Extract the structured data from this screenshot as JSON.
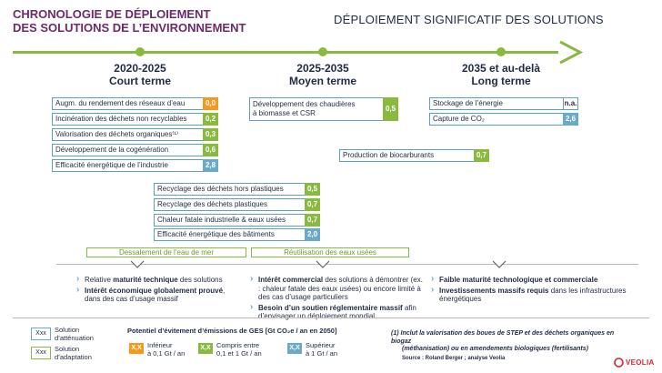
{
  "header": {
    "title_line1": "CHRONOLOGIE DE DÉPLOIEMENT",
    "title_line2": "DES SOLUTIONS DE L’ENVIRONNEMENT",
    "subtitle": "DÉPLOIEMENT SIGNIFICATIF DES SOLUTIONS"
  },
  "colors": {
    "accent": "#8ab93f",
    "title": "#6c2b6a",
    "orange": "#f39a1e",
    "green": "#8ab93f",
    "blue": "#6aa9c8"
  },
  "periods": [
    {
      "years": "2020-2025",
      "term": "Court terme"
    },
    {
      "years": "2025-2035",
      "term": "Moyen terme"
    },
    {
      "years": "2035 et au-delà",
      "term": "Long terme"
    }
  ],
  "short_term": [
    {
      "label": "Augm. du rendement des réseaux d’eau",
      "value": "0,0",
      "level": "orange"
    },
    {
      "label": "Incinération des déchets non recyclables",
      "value": "0,2",
      "level": "green"
    },
    {
      "label": "Valorisation des déchets organiques⁽¹⁾",
      "value": "0,3",
      "level": "green"
    },
    {
      "label": "Développement de la cogénération",
      "value": "0,6",
      "level": "green"
    },
    {
      "label": "Efficacité énergétique de l’industrie",
      "value": "2,8",
      "level": "blue"
    }
  ],
  "mid_items": [
    {
      "label": "Recyclage des déchets hors plastiques",
      "value": "0,5",
      "level": "green"
    },
    {
      "label": "Recyclage des déchets plastiques",
      "value": "0,7",
      "level": "green"
    },
    {
      "label": "Chaleur fatale industrielle & eaux usées",
      "value": "0,7",
      "level": "green"
    },
    {
      "label": "Efficacité énergétique des bâtiments",
      "value": "2,0",
      "level": "blue"
    }
  ],
  "medium_term": {
    "chaudieres_line1": "Développement des chaudières",
    "chaudieres_line2": "à biomasse et CSR",
    "chaudieres_value": "0,5",
    "biocarburants": "Production de biocarburants",
    "biocarburants_value": "0,7"
  },
  "long_term": [
    {
      "label": "Stockage de l’énergie",
      "value": "n.a.",
      "level": "na"
    },
    {
      "label": "Capture de CO₂",
      "value": "2,6",
      "level": "blue"
    }
  ],
  "adaptation": {
    "dessalement": "Dessalement de l’eau de mer",
    "reutilisation": "Réutilisation des eaux usées"
  },
  "bullets": {
    "col1": [
      {
        "pre": "Relative ",
        "bold": "maturité technique",
        "post": " des solutions"
      },
      {
        "pre": "",
        "bold": "Intérêt économique globalement prouvé",
        "post": ", dans des cas d’usage massif"
      }
    ],
    "col2": [
      {
        "pre": "",
        "bold": "Intérêt commercial",
        "post": " des solutions à démontrer (ex. : chaleur fatale des eaux usées) ou encore limité à des cas d’usage particuliers"
      },
      {
        "pre": "",
        "bold": "Besoin d’un soutien réglementaire massif",
        "post": " afin d’envisager un déploiement mondial"
      }
    ],
    "col3": [
      {
        "pre": "",
        "bold": "Faible maturité technologique et commerciale",
        "post": ""
      },
      {
        "pre": "",
        "bold": "Investissements massifs requis",
        "post": " dans les infrastructures énergétiques"
      }
    ]
  },
  "legend": {
    "box_text": "Xxx",
    "attenuation_line1": "Solution",
    "attenuation_line2": "d’atténuation",
    "adaptation_line1": "Solution",
    "adaptation_line2": "d’adaptation",
    "potential_title": "Potentiel d’évitement d’émissions de GES [Gt CO₂e / an en 2050]",
    "swatch_text": "X,X",
    "low_line1": "Inférieur",
    "low_line2": "à 0,1 Gt / an",
    "mid_line1": "Compris entre",
    "mid_line2": "0,1 et 1 Gt / an",
    "high_line1": "Supérieur",
    "high_line2": "à 1 Gt / an"
  },
  "footnote": {
    "line1": "(1) Inclut la valorisation des boues de STEP et des déchets organiques en biogaz",
    "line2": "(méthanisation) ou en amendements biologiques (fertilisants)",
    "source": "Source : Roland Berger ; analyse Veolia"
  },
  "brand": "VEOLIA"
}
